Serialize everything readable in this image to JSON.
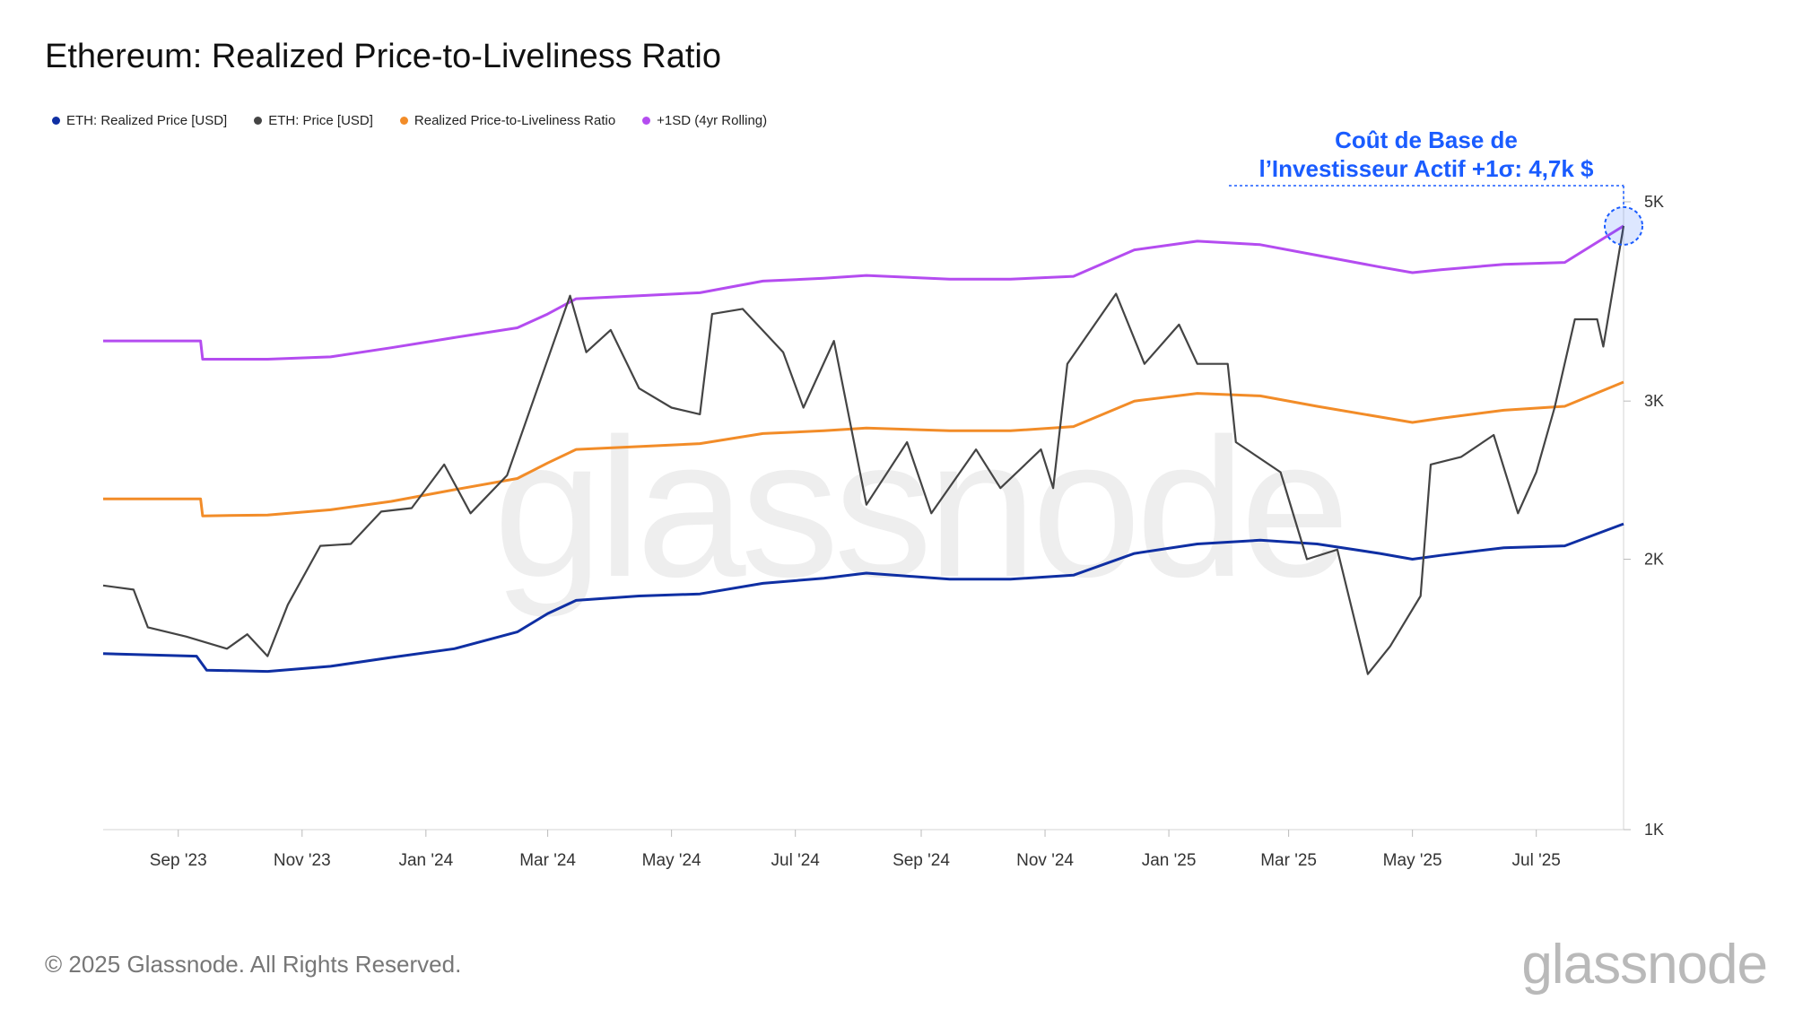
{
  "title": "Ethereum: Realized Price-to-Liveliness Ratio",
  "footer": "© 2025 Glassnode. All Rights Reserved.",
  "logo": "glassnode",
  "watermark": "glassnode",
  "annotation": {
    "line1": "Coût de Base de",
    "line2": "l’Investisseur Actif +1σ: 4,7k $",
    "color": "#1a5cff"
  },
  "chart_data": {
    "type": "line",
    "y_scale": "log",
    "ylim": [
      1000,
      5000
    ],
    "y_ticks": [
      {
        "value": 5000,
        "label": "5K"
      },
      {
        "value": 3000,
        "label": "3K"
      },
      {
        "value": 2000,
        "label": "2K"
      },
      {
        "value": 1000,
        "label": "1K"
      }
    ],
    "x_range": [
      "2023-07-26",
      "2025-08-13"
    ],
    "x_ticks": [
      {
        "date": "2023-09-01",
        "label": "Sep '23"
      },
      {
        "date": "2023-11-01",
        "label": "Nov '23"
      },
      {
        "date": "2024-01-01",
        "label": "Jan '24"
      },
      {
        "date": "2024-03-01",
        "label": "Mar '24"
      },
      {
        "date": "2024-05-01",
        "label": "May '24"
      },
      {
        "date": "2024-07-01",
        "label": "Jul '24"
      },
      {
        "date": "2024-09-01",
        "label": "Sep '24"
      },
      {
        "date": "2024-11-01",
        "label": "Nov '24"
      },
      {
        "date": "2025-01-01",
        "label": "Jan '25"
      },
      {
        "date": "2025-03-01",
        "label": "Mar '25"
      },
      {
        "date": "2025-05-01",
        "label": "May '25"
      },
      {
        "date": "2025-07-01",
        "label": "Jul '25"
      }
    ],
    "series": [
      {
        "name": "ETH: Realized Price [USD]",
        "color": "#0f2fa3",
        "points": [
          [
            "2023-07-26",
            1570
          ],
          [
            "2023-09-10",
            1560
          ],
          [
            "2023-09-15",
            1505
          ],
          [
            "2023-10-15",
            1500
          ],
          [
            "2023-11-15",
            1520
          ],
          [
            "2023-12-15",
            1555
          ],
          [
            "2024-01-15",
            1590
          ],
          [
            "2024-02-15",
            1660
          ],
          [
            "2024-03-01",
            1740
          ],
          [
            "2024-03-15",
            1800
          ],
          [
            "2024-04-15",
            1820
          ],
          [
            "2024-05-15",
            1830
          ],
          [
            "2024-06-15",
            1880
          ],
          [
            "2024-07-15",
            1905
          ],
          [
            "2024-08-05",
            1930
          ],
          [
            "2024-09-15",
            1900
          ],
          [
            "2024-10-15",
            1900
          ],
          [
            "2024-11-15",
            1920
          ],
          [
            "2024-12-15",
            2030
          ],
          [
            "2025-01-15",
            2080
          ],
          [
            "2025-02-15",
            2100
          ],
          [
            "2025-03-15",
            2080
          ],
          [
            "2025-04-15",
            2030
          ],
          [
            "2025-05-01",
            2000
          ],
          [
            "2025-05-15",
            2020
          ],
          [
            "2025-06-15",
            2060
          ],
          [
            "2025-07-15",
            2070
          ],
          [
            "2025-08-13",
            2190
          ]
        ]
      },
      {
        "name": "ETH: Price [USD]",
        "color": "#444444",
        "points": [
          [
            "2023-07-26",
            1870
          ],
          [
            "2023-08-10",
            1850
          ],
          [
            "2023-08-17",
            1680
          ],
          [
            "2023-09-05",
            1640
          ],
          [
            "2023-09-25",
            1590
          ],
          [
            "2023-10-05",
            1650
          ],
          [
            "2023-10-15",
            1560
          ],
          [
            "2023-10-25",
            1780
          ],
          [
            "2023-11-10",
            2070
          ],
          [
            "2023-11-25",
            2080
          ],
          [
            "2023-12-10",
            2260
          ],
          [
            "2023-12-25",
            2280
          ],
          [
            "2024-01-10",
            2550
          ],
          [
            "2024-01-23",
            2250
          ],
          [
            "2024-02-10",
            2480
          ],
          [
            "2024-02-25",
            3100
          ],
          [
            "2024-03-12",
            3930
          ],
          [
            "2024-03-20",
            3400
          ],
          [
            "2024-04-01",
            3600
          ],
          [
            "2024-04-15",
            3100
          ],
          [
            "2024-05-01",
            2950
          ],
          [
            "2024-05-15",
            2900
          ],
          [
            "2024-05-21",
            3750
          ],
          [
            "2024-06-05",
            3800
          ],
          [
            "2024-06-25",
            3400
          ],
          [
            "2024-07-05",
            2950
          ],
          [
            "2024-07-20",
            3500
          ],
          [
            "2024-08-05",
            2300
          ],
          [
            "2024-08-25",
            2700
          ],
          [
            "2024-09-06",
            2250
          ],
          [
            "2024-09-28",
            2650
          ],
          [
            "2024-10-10",
            2400
          ],
          [
            "2024-10-30",
            2650
          ],
          [
            "2024-11-05",
            2400
          ],
          [
            "2024-11-12",
            3300
          ],
          [
            "2024-12-06",
            3950
          ],
          [
            "2024-12-20",
            3300
          ],
          [
            "2025-01-06",
            3650
          ],
          [
            "2025-01-15",
            3300
          ],
          [
            "2025-01-30",
            3300
          ],
          [
            "2025-02-03",
            2700
          ],
          [
            "2025-02-25",
            2500
          ],
          [
            "2025-03-10",
            2000
          ],
          [
            "2025-03-25",
            2050
          ],
          [
            "2025-04-09",
            1490
          ],
          [
            "2025-04-20",
            1600
          ],
          [
            "2025-05-05",
            1820
          ],
          [
            "2025-05-10",
            2550
          ],
          [
            "2025-05-25",
            2600
          ],
          [
            "2025-06-10",
            2750
          ],
          [
            "2025-06-22",
            2250
          ],
          [
            "2025-07-01",
            2500
          ],
          [
            "2025-07-10",
            2950
          ],
          [
            "2025-07-20",
            3700
          ],
          [
            "2025-07-31",
            3700
          ],
          [
            "2025-08-03",
            3450
          ],
          [
            "2025-08-13",
            4700
          ]
        ]
      },
      {
        "name": "Realized Price-to-Liveliness Ratio",
        "color": "#f28c28",
        "points": [
          [
            "2023-07-26",
            2335
          ],
          [
            "2023-09-12",
            2335
          ],
          [
            "2023-09-13",
            2235
          ],
          [
            "2023-10-15",
            2240
          ],
          [
            "2023-11-15",
            2270
          ],
          [
            "2023-12-15",
            2320
          ],
          [
            "2024-01-15",
            2390
          ],
          [
            "2024-02-15",
            2460
          ],
          [
            "2024-03-01",
            2560
          ],
          [
            "2024-03-15",
            2650
          ],
          [
            "2024-04-15",
            2670
          ],
          [
            "2024-05-15",
            2690
          ],
          [
            "2024-06-15",
            2760
          ],
          [
            "2024-07-15",
            2780
          ],
          [
            "2024-08-05",
            2800
          ],
          [
            "2024-09-15",
            2780
          ],
          [
            "2024-10-15",
            2780
          ],
          [
            "2024-11-15",
            2810
          ],
          [
            "2024-12-15",
            3000
          ],
          [
            "2025-01-15",
            3060
          ],
          [
            "2025-02-15",
            3040
          ],
          [
            "2025-03-15",
            2960
          ],
          [
            "2025-04-15",
            2880
          ],
          [
            "2025-05-01",
            2840
          ],
          [
            "2025-05-15",
            2870
          ],
          [
            "2025-06-15",
            2930
          ],
          [
            "2025-07-15",
            2960
          ],
          [
            "2025-08-13",
            3150
          ]
        ]
      },
      {
        "name": "+1SD (4yr Rolling)",
        "color": "#b44cf0",
        "points": [
          [
            "2023-07-26",
            3500
          ],
          [
            "2023-09-12",
            3500
          ],
          [
            "2023-09-13",
            3340
          ],
          [
            "2023-10-15",
            3340
          ],
          [
            "2023-11-15",
            3360
          ],
          [
            "2023-12-15",
            3440
          ],
          [
            "2024-01-15",
            3530
          ],
          [
            "2024-02-15",
            3620
          ],
          [
            "2024-03-01",
            3750
          ],
          [
            "2024-03-15",
            3900
          ],
          [
            "2024-04-15",
            3930
          ],
          [
            "2024-05-15",
            3960
          ],
          [
            "2024-06-15",
            4080
          ],
          [
            "2024-07-15",
            4110
          ],
          [
            "2024-08-05",
            4140
          ],
          [
            "2024-09-15",
            4100
          ],
          [
            "2024-10-15",
            4100
          ],
          [
            "2024-11-15",
            4130
          ],
          [
            "2024-12-15",
            4420
          ],
          [
            "2025-01-15",
            4520
          ],
          [
            "2025-02-15",
            4480
          ],
          [
            "2025-03-15",
            4360
          ],
          [
            "2025-04-15",
            4230
          ],
          [
            "2025-05-01",
            4170
          ],
          [
            "2025-05-15",
            4200
          ],
          [
            "2025-06-15",
            4260
          ],
          [
            "2025-07-15",
            4280
          ],
          [
            "2025-08-13",
            4700
          ]
        ]
      }
    ]
  }
}
